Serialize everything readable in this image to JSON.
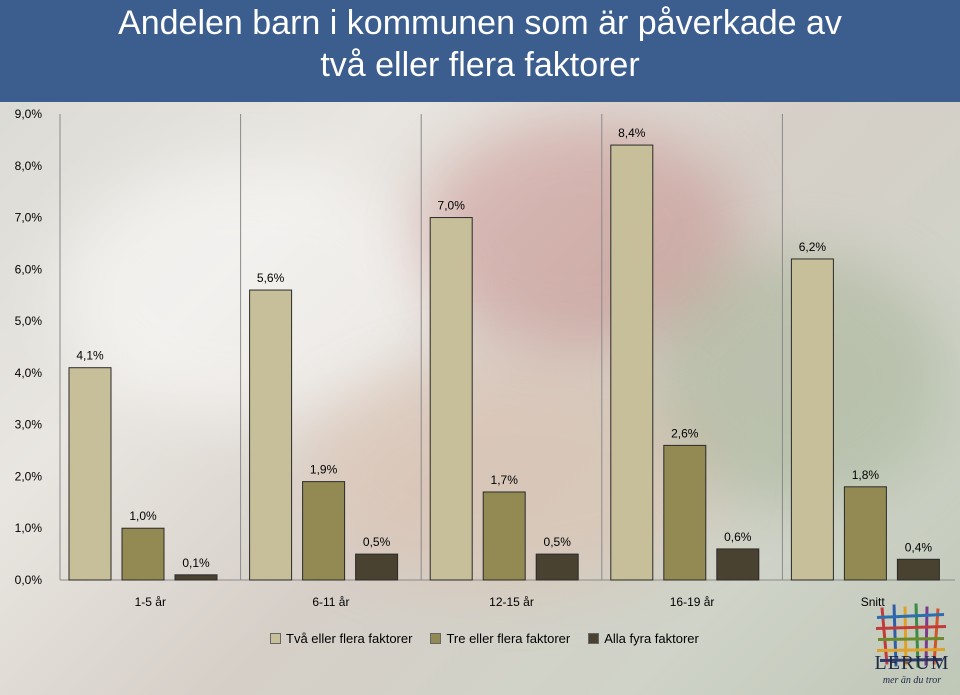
{
  "header": {
    "title_line1": "Andelen barn i kommunen som är påverkade av",
    "title_line2": "två eller flera faktorer"
  },
  "logo": {
    "word": "LERUM",
    "slogan": "mer än du tror"
  },
  "colors": {
    "header": "#3b5e8f",
    "series": [
      "#c6bf9a",
      "#928a52",
      "#4a4230"
    ]
  },
  "chart_data": {
    "type": "bar",
    "categories": [
      "1-5 år",
      "6-11 år",
      "12-15 år",
      "16-19 år",
      "Snitt"
    ],
    "series": [
      {
        "name": "Två eller flera faktorer",
        "values": [
          4.1,
          5.6,
          7.0,
          8.4,
          6.2
        ],
        "labels": [
          "4,1%",
          "5,6%",
          "7,0%",
          "8,4%",
          "6,2%"
        ]
      },
      {
        "name": "Tre eller flera faktorer",
        "values": [
          1.0,
          1.9,
          1.7,
          2.6,
          1.8
        ],
        "labels": [
          "1,0%",
          "1,9%",
          "1,7%",
          "2,6%",
          "1,8%"
        ]
      },
      {
        "name": "Alla fyra faktorer",
        "values": [
          0.1,
          0.5,
          0.5,
          0.6,
          0.4
        ],
        "labels": [
          "0,1%",
          "0,5%",
          "0,5%",
          "0,6%",
          "0,4%"
        ]
      }
    ],
    "ylim": [
      0,
      9
    ],
    "yticks": [
      "0,0%",
      "1,0%",
      "2,0%",
      "3,0%",
      "4,0%",
      "5,0%",
      "6,0%",
      "7,0%",
      "8,0%",
      "9,0%"
    ],
    "legend_position": "bottom",
    "grid": false
  }
}
